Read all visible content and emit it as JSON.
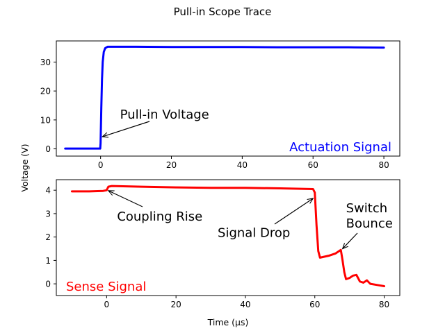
{
  "figure": {
    "title": "Pull-in Scope Trace",
    "shared_ylabel": "Voltage (V)",
    "shared_xlabel": "Time (µs)"
  },
  "chart_data": [
    {
      "type": "line",
      "name": "actuation-panel",
      "label": "Actuation Signal",
      "label_color": "#0000ff",
      "xlim": [
        -12.5,
        84.5
      ],
      "ylim": [
        -2.5,
        37.3
      ],
      "xticks": [
        0,
        20,
        40,
        60,
        80
      ],
      "yticks": [
        0,
        10,
        20,
        30
      ],
      "grid": false,
      "series": [
        {
          "color": "#0000ff",
          "points": [
            [
              -10,
              0.1
            ],
            [
              -2,
              0.1
            ],
            [
              -0.1,
              0.1
            ],
            [
              0,
              2
            ],
            [
              0.2,
              14
            ],
            [
              0.4,
              24
            ],
            [
              0.6,
              30
            ],
            [
              0.9,
              33.5
            ],
            [
              1.3,
              34.8
            ],
            [
              2,
              35.3
            ],
            [
              10,
              35.3
            ],
            [
              20,
              35.2
            ],
            [
              30,
              35.2
            ],
            [
              40,
              35.2
            ],
            [
              50,
              35.1
            ],
            [
              60,
              35.1
            ],
            [
              70,
              35.1
            ],
            [
              80,
              35.0
            ]
          ]
        }
      ],
      "annotations": [
        {
          "text": "Pull-in Voltage",
          "xy": [
            0.5,
            4.2
          ],
          "xytext": [
            5.5,
            10.5
          ]
        }
      ]
    },
    {
      "type": "line",
      "name": "sense-panel",
      "label": "Sense Signal",
      "label_color": "#ff0000",
      "xlim": [
        -14.5,
        84.5
      ],
      "ylim": [
        -0.5,
        4.45
      ],
      "xticks": [
        0,
        20,
        40,
        60,
        80
      ],
      "yticks": [
        0,
        1,
        2,
        3,
        4
      ],
      "grid": false,
      "series": [
        {
          "color": "#ff0000",
          "points": [
            [
              -10,
              3.95
            ],
            [
              -5,
              3.95
            ],
            [
              -1,
              3.97
            ],
            [
              0,
              4.0
            ],
            [
              0.5,
              4.15
            ],
            [
              1.5,
              4.18
            ],
            [
              10,
              4.15
            ],
            [
              20,
              4.12
            ],
            [
              30,
              4.1
            ],
            [
              40,
              4.1
            ],
            [
              50,
              4.08
            ],
            [
              59.5,
              4.05
            ],
            [
              60,
              3.9
            ],
            [
              60.5,
              2.5
            ],
            [
              61,
              1.4
            ],
            [
              61.5,
              1.12
            ],
            [
              64,
              1.2
            ],
            [
              66,
              1.3
            ],
            [
              67.5,
              1.45
            ],
            [
              68,
              1.0
            ],
            [
              68.5,
              0.5
            ],
            [
              69,
              0.2
            ],
            [
              70,
              0.25
            ],
            [
              71,
              0.35
            ],
            [
              72,
              0.38
            ],
            [
              73,
              0.1
            ],
            [
              74,
              0.05
            ],
            [
              75,
              0.15
            ],
            [
              76,
              0.0
            ],
            [
              78,
              -0.05
            ],
            [
              80,
              -0.1
            ]
          ]
        }
      ],
      "annotations": [
        {
          "text": "Coupling Rise",
          "xy": [
            0.5,
            3.98
          ],
          "xytext": [
            3,
            2.7
          ]
        },
        {
          "text": "Signal Drop",
          "xy": [
            59.5,
            3.65
          ],
          "xytext": [
            32,
            2.0
          ]
        },
        {
          "text": "Switch\nBounce",
          "xy": [
            68,
            1.5
          ],
          "xytext": [
            69,
            2.4
          ]
        }
      ]
    }
  ]
}
